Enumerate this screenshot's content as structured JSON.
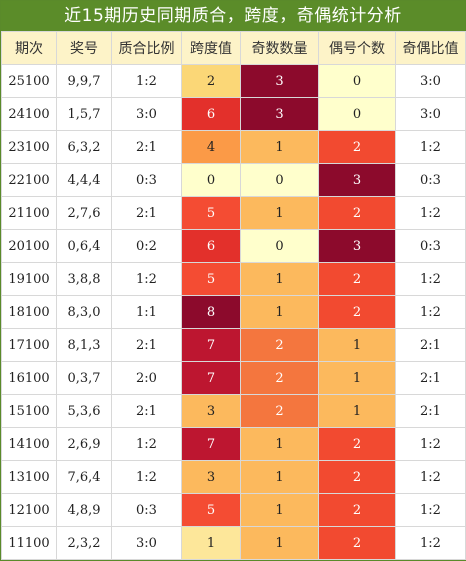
{
  "title": "近15期历史同期质合，跨度，奇偶统计分析",
  "headers": [
    "期次",
    "奖号",
    "质合比例",
    "跨度值",
    "奇数数量",
    "偶号个数",
    "奇偶比值"
  ],
  "colors": {
    "1": "#fde79a",
    "2": "#fbcf73",
    "3": "#fbb55a",
    "4": "#fa9a47",
    "5": "#f8673a",
    "6": "#e93a2e",
    "7": "#c8202e",
    "8": "#8c0a2c",
    "0": "#ffffcc"
  },
  "rows": [
    {
      "period": "25100",
      "number": "9,9,7",
      "prime_ratio": "1:2",
      "span": {
        "v": "2",
        "c": "#fbd777"
      },
      "odd": {
        "v": "3",
        "c": "#8c0a2c"
      },
      "even": {
        "v": "0",
        "c": "#ffffcc"
      },
      "oe_ratio": "3:0"
    },
    {
      "period": "24100",
      "number": "1,5,7",
      "prime_ratio": "3:0",
      "span": {
        "v": "6",
        "c": "#e3302b"
      },
      "odd": {
        "v": "3",
        "c": "#8c0a2c"
      },
      "even": {
        "v": "0",
        "c": "#ffffcc"
      },
      "oe_ratio": "3:0"
    },
    {
      "period": "23100",
      "number": "6,3,2",
      "prime_ratio": "2:1",
      "span": {
        "v": "4",
        "c": "#fb9a47"
      },
      "odd": {
        "v": "1",
        "c": "#fcb95d"
      },
      "even": {
        "v": "2",
        "c": "#f24a30"
      },
      "oe_ratio": "1:2"
    },
    {
      "period": "22100",
      "number": "4,4,4",
      "prime_ratio": "0:3",
      "span": {
        "v": "0",
        "c": "#ffffcc"
      },
      "odd": {
        "v": "0",
        "c": "#ffffcc"
      },
      "even": {
        "v": "3",
        "c": "#8c0a2c"
      },
      "oe_ratio": "0:3"
    },
    {
      "period": "21100",
      "number": "2,7,6",
      "prime_ratio": "2:1",
      "span": {
        "v": "5",
        "c": "#f44c33"
      },
      "odd": {
        "v": "1",
        "c": "#fcb95d"
      },
      "even": {
        "v": "2",
        "c": "#f24a30"
      },
      "oe_ratio": "1:2"
    },
    {
      "period": "20100",
      "number": "0,6,4",
      "prime_ratio": "0:2",
      "span": {
        "v": "6",
        "c": "#e3302b"
      },
      "odd": {
        "v": "0",
        "c": "#ffffcc"
      },
      "even": {
        "v": "3",
        "c": "#8c0a2c"
      },
      "oe_ratio": "0:3"
    },
    {
      "period": "19100",
      "number": "3,8,8",
      "prime_ratio": "1:2",
      "span": {
        "v": "5",
        "c": "#f44c33"
      },
      "odd": {
        "v": "1",
        "c": "#fcb95d"
      },
      "even": {
        "v": "2",
        "c": "#f24a30"
      },
      "oe_ratio": "1:2"
    },
    {
      "period": "18100",
      "number": "8,3,0",
      "prime_ratio": "1:1",
      "span": {
        "v": "8",
        "c": "#8c0a2c"
      },
      "odd": {
        "v": "1",
        "c": "#fcb95d"
      },
      "even": {
        "v": "2",
        "c": "#f24a30"
      },
      "oe_ratio": "1:2"
    },
    {
      "period": "17100",
      "number": "8,1,3",
      "prime_ratio": "2:1",
      "span": {
        "v": "7",
        "c": "#bd1630"
      },
      "odd": {
        "v": "2",
        "c": "#f4763e"
      },
      "even": {
        "v": "1",
        "c": "#fcb95d"
      },
      "oe_ratio": "2:1"
    },
    {
      "period": "16100",
      "number": "0,3,7",
      "prime_ratio": "2:0",
      "span": {
        "v": "7",
        "c": "#bd1630"
      },
      "odd": {
        "v": "2",
        "c": "#f4763e"
      },
      "even": {
        "v": "1",
        "c": "#fcb95d"
      },
      "oe_ratio": "2:1"
    },
    {
      "period": "15100",
      "number": "5,3,6",
      "prime_ratio": "2:1",
      "span": {
        "v": "3",
        "c": "#fcb95d"
      },
      "odd": {
        "v": "2",
        "c": "#f4763e"
      },
      "even": {
        "v": "1",
        "c": "#fcb95d"
      },
      "oe_ratio": "2:1"
    },
    {
      "period": "14100",
      "number": "2,6,9",
      "prime_ratio": "1:2",
      "span": {
        "v": "7",
        "c": "#bd1630"
      },
      "odd": {
        "v": "1",
        "c": "#fcb95d"
      },
      "even": {
        "v": "2",
        "c": "#f24a30"
      },
      "oe_ratio": "1:2"
    },
    {
      "period": "13100",
      "number": "7,6,4",
      "prime_ratio": "1:2",
      "span": {
        "v": "3",
        "c": "#fcb95d"
      },
      "odd": {
        "v": "1",
        "c": "#fcb95d"
      },
      "even": {
        "v": "2",
        "c": "#f24a30"
      },
      "oe_ratio": "1:2"
    },
    {
      "period": "12100",
      "number": "4,8,9",
      "prime_ratio": "0:3",
      "span": {
        "v": "5",
        "c": "#f44c33"
      },
      "odd": {
        "v": "1",
        "c": "#fcb95d"
      },
      "even": {
        "v": "2",
        "c": "#f24a30"
      },
      "oe_ratio": "1:2"
    },
    {
      "period": "11100",
      "number": "2,3,2",
      "prime_ratio": "3:0",
      "span": {
        "v": "1",
        "c": "#fde79a"
      },
      "odd": {
        "v": "1",
        "c": "#fcb95d"
      },
      "even": {
        "v": "2",
        "c": "#f24a30"
      },
      "oe_ratio": "1:2"
    }
  ]
}
